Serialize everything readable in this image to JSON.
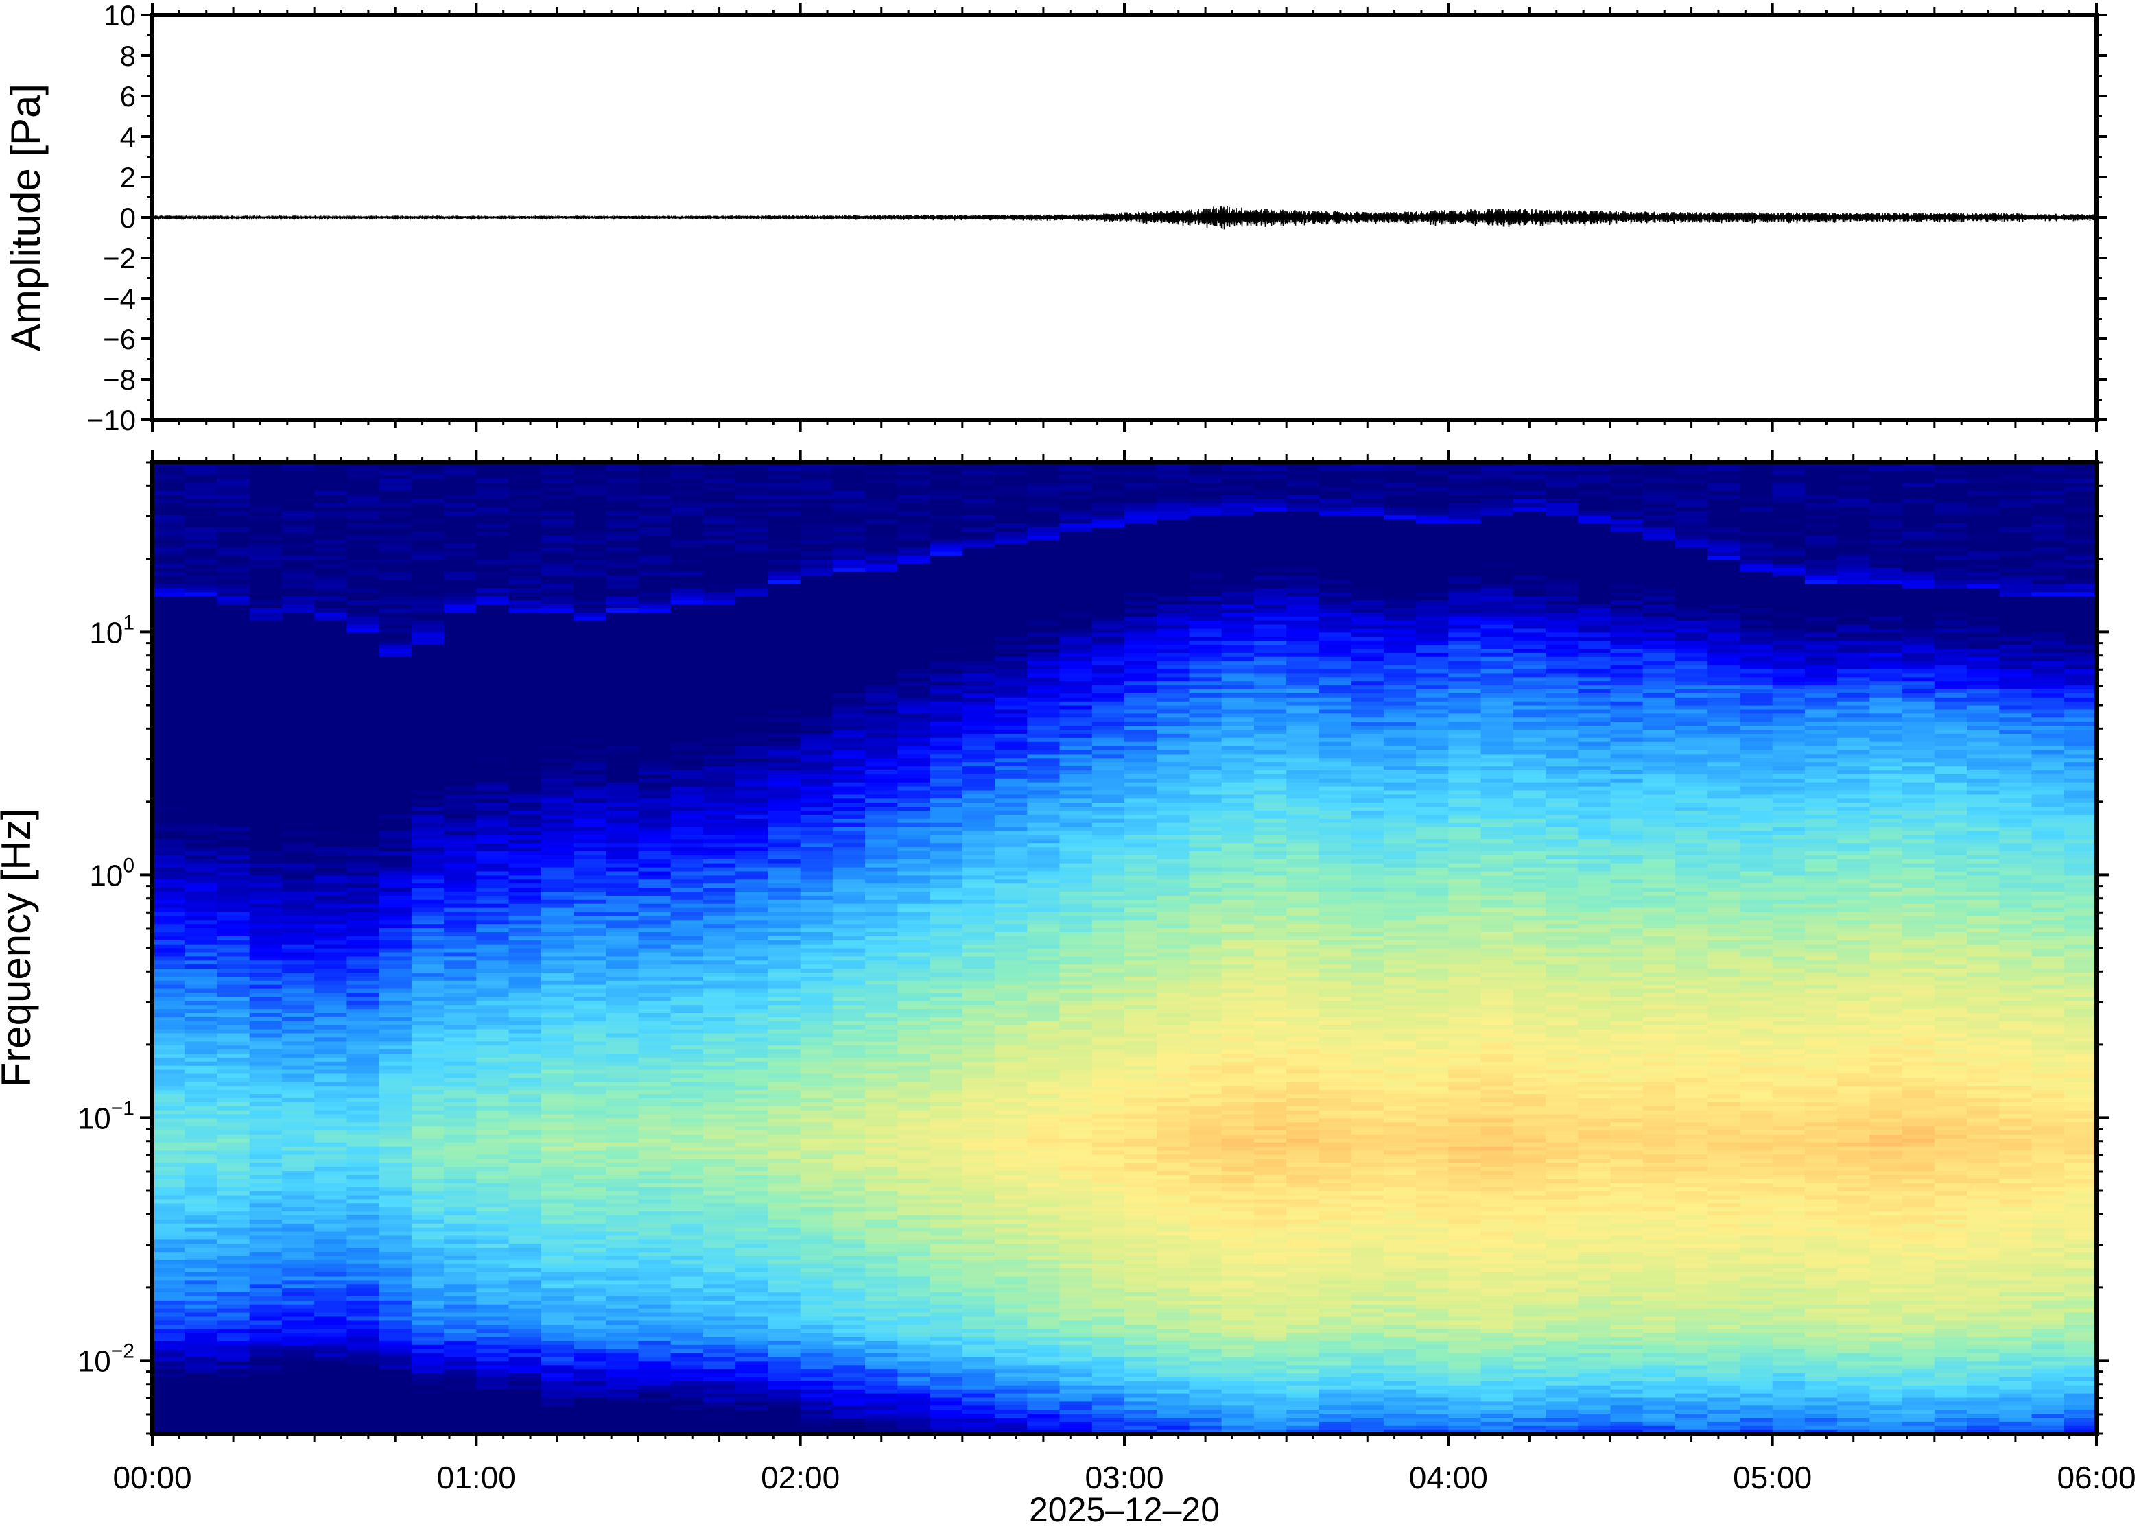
{
  "chart_data": [
    {
      "type": "line",
      "title": "",
      "xlabel": "",
      "ylabel": "Amplitude [Pa]",
      "ylim": [
        -10,
        10
      ],
      "yticks": [
        "10",
        "8",
        "6",
        "4",
        "2",
        "0",
        "−2",
        "−4",
        "−6",
        "−8",
        "−10"
      ],
      "ytick_values": [
        10,
        8,
        6,
        4,
        2,
        0,
        -2,
        -4,
        -6,
        -8,
        -10
      ],
      "x_range_hours": [
        0,
        6
      ],
      "envelope": {
        "x_hours": [
          0,
          0.5,
          1.0,
          1.5,
          2.0,
          2.5,
          2.9,
          3.0,
          3.2,
          3.3,
          3.4,
          3.5,
          3.6,
          3.8,
          4.0,
          4.2,
          4.3,
          4.5,
          4.8,
          5.0,
          5.3,
          5.5,
          5.8,
          6.0
        ],
        "amplitude_pa": [
          0.03,
          0.04,
          0.05,
          0.06,
          0.08,
          0.1,
          0.12,
          0.2,
          0.3,
          0.45,
          0.35,
          0.3,
          0.25,
          0.2,
          0.3,
          0.35,
          0.3,
          0.25,
          0.2,
          0.2,
          0.18,
          0.18,
          0.15,
          0.12
        ]
      }
    },
    {
      "type": "heatmap",
      "title": "",
      "xlabel": "2025–12–20",
      "ylabel": "Frequency [Hz]",
      "y_scale": "log",
      "ylim": [
        0.005,
        50
      ],
      "yticks": [
        {
          "base": "10",
          "exp": "1",
          "value": 10
        },
        {
          "base": "10",
          "exp": "0",
          "value": 1
        },
        {
          "base": "10",
          "exp": "−1",
          "value": 0.1
        },
        {
          "base": "10",
          "exp": "−2",
          "value": 0.01
        }
      ],
      "xticks": [
        "00:00",
        "01:00",
        "02:00",
        "03:00",
        "04:00",
        "05:00",
        "06:00"
      ],
      "x_range_hours": [
        0,
        6
      ],
      "colormap": [
        "#00007f",
        "#0000ff",
        "#1f8fff",
        "#4fd8ff",
        "#8fefc0",
        "#d8f090",
        "#fff08a",
        "#ffd070",
        "#ff9a50"
      ],
      "time_columns": 60,
      "upper_cutoff_hz": [
        14,
        14,
        13,
        11,
        12,
        11,
        10,
        8,
        9,
        12,
        13,
        12,
        12,
        11,
        12,
        12,
        13,
        13,
        14,
        16,
        17,
        18,
        18,
        19,
        21,
        22,
        23,
        24,
        26,
        27,
        28,
        29,
        30,
        30,
        31,
        31,
        30,
        30,
        29,
        28,
        28,
        30,
        31,
        30,
        28,
        26,
        24,
        22,
        20,
        18,
        17,
        16,
        16,
        16,
        15,
        15,
        15,
        14,
        14,
        14
      ],
      "microbarom_intensity": [
        0.45,
        0.45,
        0.45,
        0.42,
        0.42,
        0.42,
        0.42,
        0.45,
        0.5,
        0.5,
        0.52,
        0.52,
        0.55,
        0.55,
        0.55,
        0.55,
        0.56,
        0.57,
        0.58,
        0.6,
        0.62,
        0.64,
        0.66,
        0.68,
        0.7,
        0.72,
        0.74,
        0.76,
        0.78,
        0.8,
        0.82,
        0.84,
        0.86,
        0.88,
        0.88,
        0.88,
        0.86,
        0.85,
        0.85,
        0.86,
        0.88,
        0.88,
        0.87,
        0.86,
        0.85,
        0.85,
        0.86,
        0.86,
        0.86,
        0.85,
        0.85,
        0.86,
        0.87,
        0.88,
        0.88,
        0.87,
        0.86,
        0.85,
        0.84,
        0.83
      ]
    }
  ]
}
